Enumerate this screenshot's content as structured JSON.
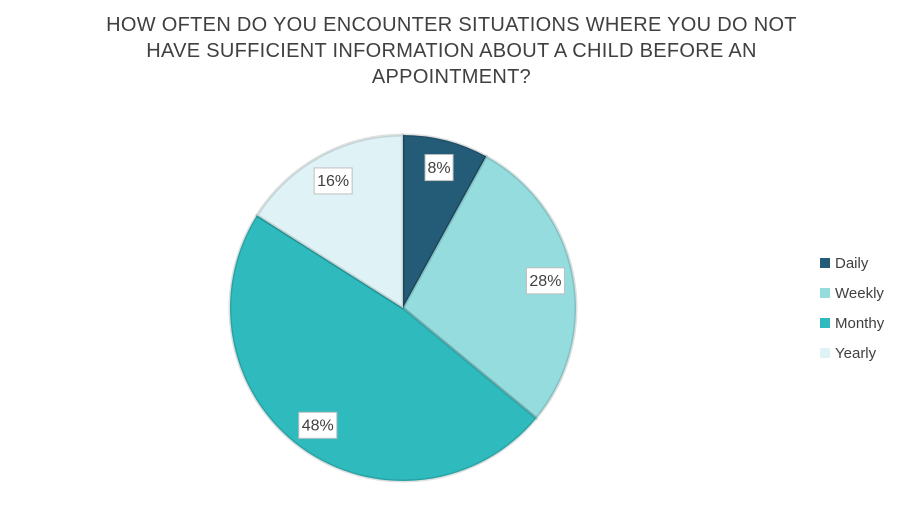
{
  "chart_data": {
    "type": "pie",
    "title": "HOW OFTEN DO YOU ENCOUNTER SITUATIONS WHERE YOU DO NOT HAVE SUFFICIENT INFORMATION ABOUT A CHILD BEFORE AN APPOINTMENT?",
    "categories": [
      "Daily",
      "Weekly",
      "Monthy",
      "Yearly"
    ],
    "values": [
      8,
      28,
      48,
      16
    ],
    "value_labels": [
      "8%",
      "28%",
      "48%",
      "16%"
    ],
    "colors": [
      "#245c77",
      "#94dcdd",
      "#2fbbbd",
      "#dff2f5"
    ],
    "legend": "right"
  }
}
